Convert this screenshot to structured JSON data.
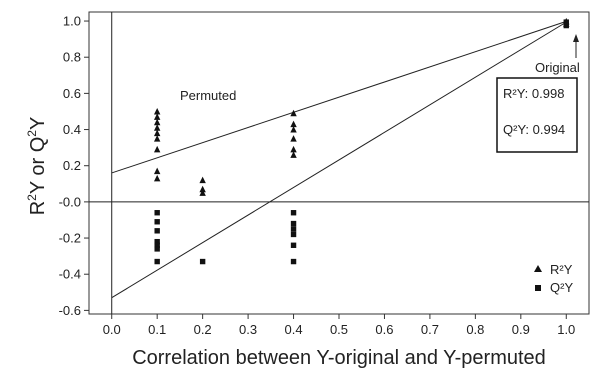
{
  "chart_data": {
    "type": "scatter",
    "xlabel": "Correlation between Y-original and Y-permuted",
    "ylabel_main": "R",
    "ylabel_sup1": "2",
    "ylabel_mid": "Y or Q",
    "ylabel_sup2": "2",
    "ylabel_end": "Y",
    "xlim": [
      -0.05,
      1.05
    ],
    "ylim": [
      -0.62,
      1.05
    ],
    "xticks": [
      0.0,
      0.1,
      0.2,
      0.3,
      0.4,
      0.5,
      0.6,
      0.7,
      0.8,
      0.9,
      1.0
    ],
    "xtick_labels": [
      "0.0",
      "0.1",
      "0.2",
      "0.3",
      "0.4",
      "0.5",
      "0.6",
      "0.7",
      "0.8",
      "0.9",
      "1.0"
    ],
    "yticks": [
      -0.6,
      -0.4,
      -0.2,
      0.0,
      0.2,
      0.4,
      0.6,
      0.8,
      1.0
    ],
    "ytick_labels": [
      "-0.6",
      "-0.4",
      "-0.2",
      "-0.0",
      "0.2",
      "0.4",
      "0.6",
      "0.8",
      "1.0"
    ],
    "grid": false,
    "legend_position": "bottom-right",
    "series": [
      {
        "name": "R²Y",
        "marker": "triangle",
        "color": "#111111",
        "points": [
          [
            0.1,
            0.5
          ],
          [
            0.1,
            0.47
          ],
          [
            0.1,
            0.44
          ],
          [
            0.1,
            0.41
          ],
          [
            0.1,
            0.38
          ],
          [
            0.1,
            0.35
          ],
          [
            0.1,
            0.29
          ],
          [
            0.1,
            0.17
          ],
          [
            0.1,
            0.13
          ],
          [
            0.2,
            0.12
          ],
          [
            0.2,
            0.07
          ],
          [
            0.2,
            0.05
          ],
          [
            0.4,
            0.49
          ],
          [
            0.4,
            0.43
          ],
          [
            0.4,
            0.4
          ],
          [
            0.4,
            0.35
          ],
          [
            0.4,
            0.29
          ],
          [
            0.4,
            0.26
          ],
          [
            1.0,
            0.998
          ],
          [
            1.0,
            0.985
          ]
        ]
      },
      {
        "name": "Q²Y",
        "marker": "square",
        "color": "#111111",
        "points": [
          [
            0.1,
            -0.06
          ],
          [
            0.1,
            -0.11
          ],
          [
            0.1,
            -0.16
          ],
          [
            0.1,
            -0.22
          ],
          [
            0.1,
            -0.24
          ],
          [
            0.1,
            -0.26
          ],
          [
            0.1,
            -0.33
          ],
          [
            0.2,
            -0.33
          ],
          [
            0.4,
            -0.06
          ],
          [
            0.4,
            -0.12
          ],
          [
            0.4,
            -0.15
          ],
          [
            0.4,
            -0.18
          ],
          [
            0.4,
            -0.24
          ],
          [
            0.4,
            -0.33
          ],
          [
            1.0,
            0.994
          ],
          [
            1.0,
            0.975
          ]
        ]
      }
    ],
    "regression_lines": [
      {
        "name": "R2Y intercept line",
        "x": [
          0.0,
          1.0
        ],
        "y": [
          0.16,
          0.998
        ]
      },
      {
        "name": "Q2Y intercept line",
        "x": [
          0.0,
          1.0
        ],
        "y": [
          -0.53,
          0.994
        ]
      }
    ],
    "annotations": {
      "permuted": "Permuted",
      "original": "Original",
      "r2_text": "R²Y: 0.998",
      "q2_text": "Q²Y: 0.994"
    },
    "legend": {
      "r2_label": "R²Y",
      "q2_label": "Q²Y"
    }
  }
}
